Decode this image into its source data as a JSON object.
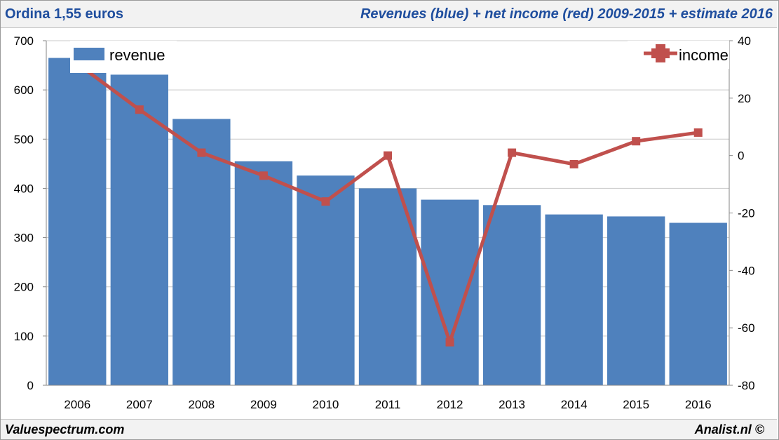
{
  "header": {
    "left_title": "Ordina 1,55 euros",
    "right_title": "Revenues (blue) + net income (red) 2009-2015 + estimate 2016"
  },
  "footer": {
    "left": "Valuespectrum.com",
    "right": "Analist.nl ©"
  },
  "colors": {
    "bar": "#4f81bd",
    "line": "#c0504d",
    "grid": "#c8c8c8"
  },
  "chart_data": {
    "type": "bar",
    "categories": [
      "2006",
      "2007",
      "2008",
      "2009",
      "2010",
      "2011",
      "2012",
      "2013",
      "2014",
      "2015",
      "2016"
    ],
    "series": [
      {
        "name": "revenue",
        "type": "bar",
        "axis": "left",
        "values": [
          665,
          631,
          541,
          455,
          426,
          400,
          377,
          366,
          347,
          343,
          330
        ]
      },
      {
        "name": "income",
        "type": "line",
        "axis": "right",
        "values": [
          32,
          16,
          1,
          -7,
          -16,
          0,
          -65,
          1,
          -3,
          5,
          8
        ]
      }
    ],
    "ylim_left": [
      0,
      700
    ],
    "yticks_left": [
      "0",
      "100",
      "200",
      "300",
      "400",
      "500",
      "600",
      "700"
    ],
    "ylim_right": [
      -80,
      40
    ],
    "yticks_right": [
      "-80",
      "-60",
      "-40",
      "-20",
      "0",
      "20",
      "40"
    ],
    "grid": true,
    "legend": [
      "top-left",
      "top-right"
    ]
  }
}
